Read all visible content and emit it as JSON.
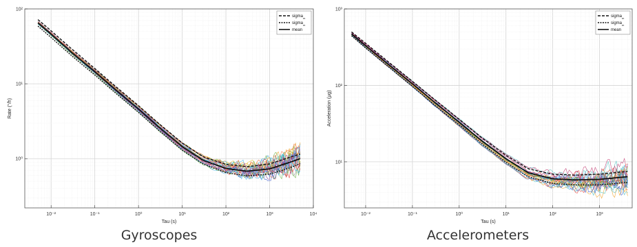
{
  "chart_data": [
    {
      "type": "line",
      "caption": "Gyroscopes",
      "xlabel": "Tau (s)",
      "ylabel": "Rate (°/h)",
      "xscale": "log",
      "yscale": "log",
      "xlim": [
        0.0025,
        10000
      ],
      "ylim": [
        0.22,
        100
      ],
      "xtick_labels": [
        "10⁻²",
        "10⁻¹",
        "10⁰",
        "10¹",
        "10²",
        "10³",
        "10⁴"
      ],
      "xtick_values": [
        0.01,
        0.1,
        1,
        10,
        100,
        1000,
        10000
      ],
      "ytick_labels": [
        "10⁰",
        "10¹",
        "10²"
      ],
      "ytick_values": [
        1,
        10,
        100
      ],
      "grid": true,
      "legend_position": "top-right",
      "legend": [
        {
          "label": "sigma",
          "sub": "m",
          "style": "dashed"
        },
        {
          "label": "sigma",
          "sub": "m",
          "style": "dotted"
        },
        {
          "label": "mean",
          "style": "solid"
        }
      ],
      "series": [
        {
          "name": "mean",
          "role": "mean",
          "x": [
            0.005,
            0.01,
            0.03,
            0.1,
            0.3,
            1,
            3,
            10,
            30,
            100,
            300,
            1000,
            3000,
            5000
          ],
          "y": [
            65,
            46,
            26,
            14.5,
            8.3,
            4.6,
            2.6,
            1.45,
            0.95,
            0.74,
            0.68,
            0.73,
            0.9,
            1.0
          ]
        },
        {
          "name": "sigma_upper",
          "role": "sigma-upper",
          "x": [
            0.005,
            0.01,
            0.03,
            0.1,
            0.3,
            1,
            3,
            10,
            30,
            100,
            300,
            1000,
            3000,
            5000
          ],
          "y": [
            72,
            51,
            29,
            16,
            9.2,
            5.1,
            2.9,
            1.62,
            1.06,
            0.84,
            0.78,
            0.85,
            1.05,
            1.15
          ]
        },
        {
          "name": "sigma_lower",
          "role": "sigma-lower",
          "x": [
            0.005,
            0.01,
            0.03,
            0.1,
            0.3,
            1,
            3,
            10,
            30,
            100,
            300,
            1000,
            3000,
            5000
          ],
          "y": [
            59,
            41.5,
            23.5,
            13.1,
            7.5,
            4.15,
            2.35,
            1.3,
            0.85,
            0.65,
            0.59,
            0.62,
            0.76,
            0.86
          ]
        }
      ]
    },
    {
      "type": "line",
      "caption": "Accelerometers",
      "xlabel": "Tau (s)",
      "ylabel": "Acceleration (μg)",
      "xscale": "log",
      "yscale": "log",
      "xlim": [
        0.0035,
        5000
      ],
      "ylim": [
        2.5,
        1000
      ],
      "xtick_labels": [
        "10⁻²",
        "10⁻¹",
        "10⁰",
        "10¹",
        "10²",
        "10³"
      ],
      "xtick_values": [
        0.01,
        0.1,
        1,
        10,
        100,
        1000
      ],
      "ytick_labels": [
        "10¹",
        "10²",
        "10³"
      ],
      "ytick_values": [
        10,
        100,
        1000
      ],
      "grid": true,
      "legend_position": "top-right",
      "legend": [
        {
          "label": "sigma",
          "sub": "m",
          "style": "dashed"
        },
        {
          "label": "sigma",
          "sub": "m",
          "style": "dotted"
        },
        {
          "label": "mean",
          "style": "solid"
        }
      ],
      "series": [
        {
          "name": "mean",
          "role": "mean",
          "x": [
            0.005,
            0.01,
            0.03,
            0.1,
            0.3,
            1,
            3,
            10,
            30,
            100,
            300,
            1000,
            4000
          ],
          "y": [
            470,
            330,
            190,
            105,
            60,
            33,
            19,
            11,
            7.2,
            6.0,
            5.8,
            5.9,
            6.4
          ]
        },
        {
          "name": "sigma_upper",
          "role": "sigma-upper",
          "x": [
            0.005,
            0.01,
            0.03,
            0.1,
            0.3,
            1,
            3,
            10,
            30,
            100,
            300,
            1000,
            4000
          ],
          "y": [
            500,
            355,
            205,
            113,
            65,
            36,
            20.8,
            12.2,
            8.1,
            6.9,
            6.7,
            6.9,
            7.5
          ]
        },
        {
          "name": "sigma_lower",
          "role": "sigma-lower",
          "x": [
            0.005,
            0.01,
            0.03,
            0.1,
            0.3,
            1,
            3,
            10,
            30,
            100,
            300,
            1000,
            4000
          ],
          "y": [
            445,
            308,
            177,
            97,
            55,
            30.5,
            17.4,
            9.9,
            6.4,
            5.2,
            5.0,
            5.0,
            5.4
          ]
        }
      ]
    }
  ],
  "theme": {
    "noise_colors": [
      "#e8332b",
      "#2e9bd6",
      "#f0a020",
      "#7d3fa0",
      "#5aa834",
      "#49c0c0",
      "#c0306a",
      "#3355cc",
      "#f07040",
      "#3ab0e8",
      "#e6c020",
      "#888888"
    ]
  }
}
